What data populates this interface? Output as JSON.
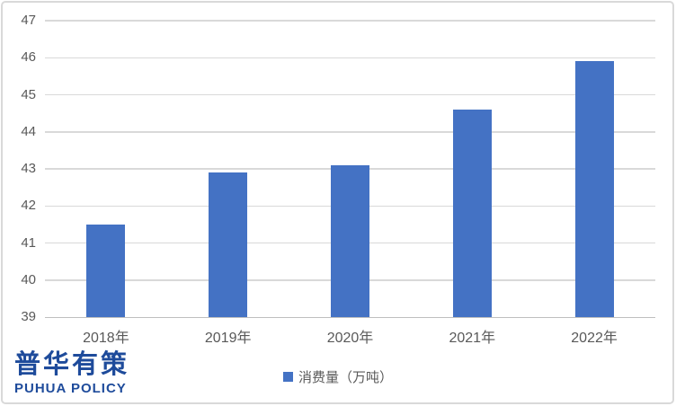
{
  "chart_data": {
    "type": "bar",
    "categories": [
      "2018年",
      "2019年",
      "2020年",
      "2021年",
      "2022年"
    ],
    "values": [
      41.5,
      42.9,
      43.1,
      44.6,
      45.9
    ],
    "series_name": "消费量（万吨）",
    "title": "",
    "xlabel": "",
    "ylabel": "",
    "ylim": [
      39,
      47
    ],
    "yticks": [
      39,
      40,
      41,
      42,
      43,
      44,
      45,
      46,
      47
    ],
    "grid": true,
    "legend_position": "bottom",
    "bar_color": "#4472c4",
    "gridline_color": "#d9d9d9",
    "axis_line_color": "#bfbfbf",
    "tick_label_color": "#595959"
  },
  "legend": {
    "label": "消费量（万吨）",
    "marker_color": "#4472c4"
  },
  "logo": {
    "cn": "普华有策",
    "en": "PUHUA POLICY",
    "color": "#1e4b9b"
  }
}
